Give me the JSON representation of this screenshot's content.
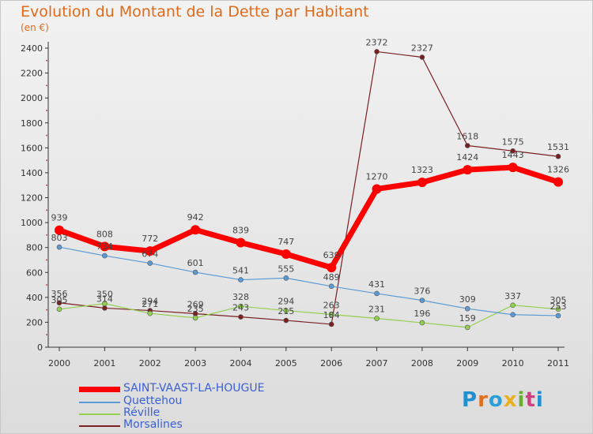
{
  "header": {
    "title": "Evolution du Montant de la Dette par Habitant",
    "subtitle": "(en €)"
  },
  "logo": {
    "text": [
      "P",
      "r",
      "o",
      "x",
      "i",
      "t",
      "i"
    ]
  },
  "chart_data": {
    "type": "line",
    "x": [
      "2000",
      "2001",
      "2002",
      "2003",
      "2004",
      "2005",
      "2006",
      "2007",
      "2008",
      "2009",
      "2010",
      "2011"
    ],
    "yticks": [
      0,
      200,
      400,
      600,
      800,
      1000,
      1200,
      1400,
      1600,
      1800,
      2000,
      2200,
      2400
    ],
    "ylim": [
      0,
      2400
    ],
    "grid": false,
    "legend_position": "bottom-left",
    "series": [
      {
        "name": "SAINT-VAAST-LA-HOUGUE",
        "color": "#ff0000",
        "width": 7,
        "marker": 6,
        "values": [
          939,
          808,
          772,
          942,
          839,
          747,
          639,
          1270,
          1323,
          1424,
          1443,
          1326
        ],
        "labels": [
          "939",
          "808",
          "772",
          "942",
          "839",
          "747",
          "639",
          "1270",
          "1323",
          "1424",
          "1443",
          "1326"
        ]
      },
      {
        "name": "Quettehou",
        "color": "#5b9bd5",
        "width": 1.2,
        "marker": 3,
        "values": [
          803,
          734,
          674,
          601,
          541,
          555,
          489,
          431,
          376,
          309,
          261,
          253
        ],
        "labels": [
          "803",
          "734",
          "674",
          "601",
          "541",
          "555",
          "489",
          "431",
          "376",
          "309",
          "",
          "253"
        ]
      },
      {
        "name": "Réville",
        "color": "#92d050",
        "width": 1.2,
        "marker": 3,
        "values": [
          305,
          350,
          271,
          235,
          328,
          294,
          263,
          231,
          196,
          159,
          337,
          305
        ],
        "labels": [
          "305",
          "350",
          "271",
          "235",
          "328",
          "294",
          "263",
          "231",
          "196",
          "159",
          "337",
          "305"
        ]
      },
      {
        "name": "Morsalines",
        "color": "#7b2020",
        "width": 1.2,
        "marker": 3,
        "values": [
          356,
          314,
          294,
          269,
          243,
          215,
          184,
          2372,
          2327,
          1618,
          1575,
          1531
        ],
        "labels": [
          "356",
          "314",
          "294",
          "269",
          "243",
          "215",
          "184",
          "2372",
          "2327",
          "1618",
          "1575",
          "1531"
        ]
      }
    ]
  }
}
